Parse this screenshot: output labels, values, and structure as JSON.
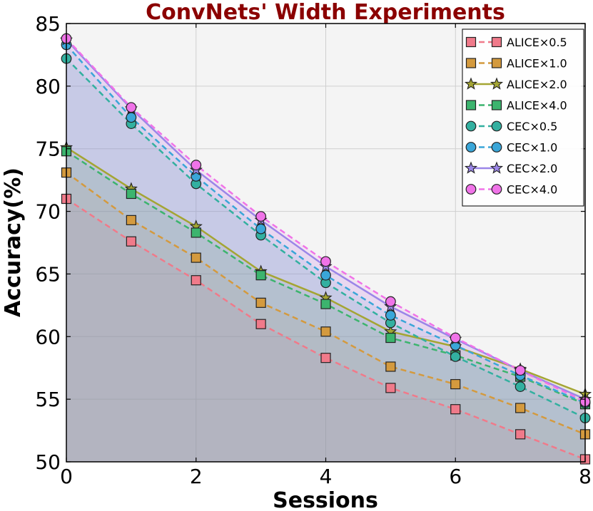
{
  "chart_data": {
    "type": "line",
    "title": "ConvNets' Width Experiments",
    "xlabel": "Sessions",
    "ylabel": "Accuracy(%)",
    "xlim": [
      0,
      8
    ],
    "ylim": [
      50,
      85
    ],
    "x": [
      0,
      1,
      2,
      3,
      4,
      5,
      6,
      7,
      8
    ],
    "xticks": [
      "0",
      "2",
      "4",
      "6",
      "8"
    ],
    "yticks": [
      "50",
      "55",
      "60",
      "65",
      "70",
      "75",
      "80",
      "85"
    ],
    "grid": true,
    "legend_position": "top-right",
    "title_color": "#8b0000",
    "series": [
      {
        "name": "ALICE×0.5",
        "marker": "square",
        "line": "dashed",
        "color": "#f07a8a",
        "values": [
          71.0,
          67.6,
          64.5,
          61.0,
          58.3,
          55.9,
          54.2,
          52.2,
          50.2
        ]
      },
      {
        "name": "ALICE×1.0",
        "marker": "square",
        "line": "dashed",
        "color": "#d49a3e",
        "values": [
          73.1,
          69.3,
          66.3,
          62.7,
          60.4,
          57.6,
          56.2,
          54.3,
          52.2
        ]
      },
      {
        "name": "ALICE×2.0",
        "marker": "star",
        "line": "solid",
        "color": "#a4a533",
        "values": [
          75.1,
          71.8,
          68.8,
          65.2,
          63.1,
          60.4,
          59.2,
          57.4,
          55.4
        ]
      },
      {
        "name": "ALICE×4.0",
        "marker": "square",
        "line": "dashed",
        "color": "#3cb46e",
        "values": [
          74.8,
          71.4,
          68.3,
          64.9,
          62.6,
          59.9,
          58.5,
          56.8,
          54.6
        ]
      },
      {
        "name": "CEC×0.5",
        "marker": "circle",
        "line": "dashed",
        "color": "#33b0a0",
        "values": [
          82.2,
          77.0,
          72.2,
          68.1,
          64.3,
          61.1,
          58.4,
          56.0,
          53.5
        ]
      },
      {
        "name": "CEC×1.0",
        "marker": "circle",
        "line": "dashed",
        "color": "#3aa6d8",
        "values": [
          83.3,
          77.5,
          72.8,
          68.6,
          64.9,
          61.7,
          59.3,
          56.9,
          54.7
        ]
      },
      {
        "name": "CEC×2.0",
        "marker": "star",
        "line": "solid",
        "color": "#9b86e8",
        "values": [
          83.7,
          78.2,
          73.3,
          69.3,
          65.6,
          62.4,
          59.8,
          57.3,
          55.0
        ]
      },
      {
        "name": "CEC×4.0",
        "marker": "circle",
        "line": "dashed",
        "color": "#f073e8",
        "values": [
          83.8,
          78.3,
          73.7,
          69.6,
          66.0,
          62.8,
          59.9,
          57.3,
          54.8
        ]
      }
    ]
  }
}
